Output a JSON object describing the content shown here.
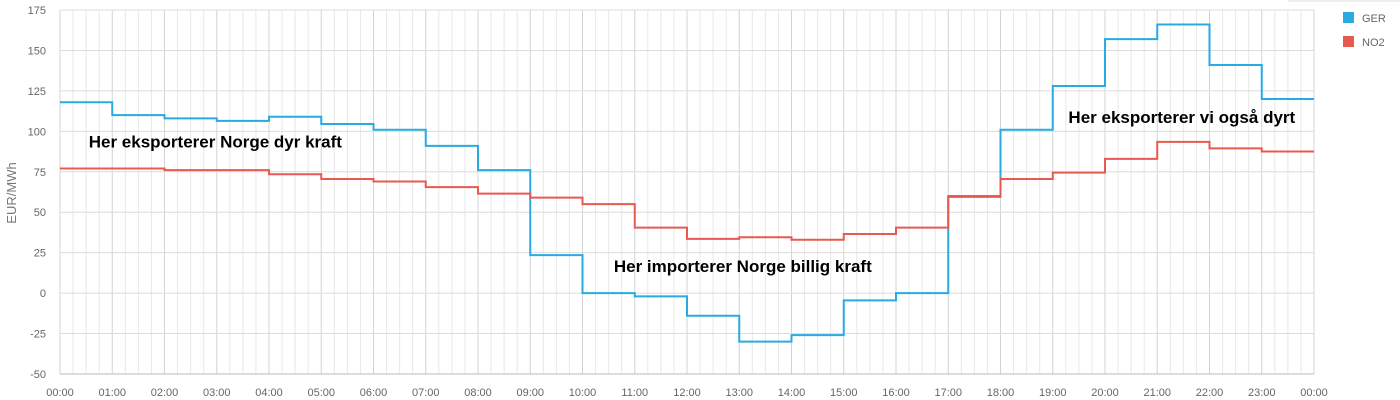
{
  "chart_data": {
    "type": "line",
    "step": true,
    "ylabel": "EUR/MWh",
    "ylim": [
      -50,
      175
    ],
    "yticks": [
      -50,
      -25,
      0,
      25,
      50,
      75,
      100,
      125,
      150,
      175
    ],
    "xticks": [
      "00:00",
      "01:00",
      "02:00",
      "03:00",
      "04:00",
      "05:00",
      "06:00",
      "07:00",
      "08:00",
      "09:00",
      "10:00",
      "11:00",
      "12:00",
      "13:00",
      "14:00",
      "15:00",
      "16:00",
      "17:00",
      "18:00",
      "19:00",
      "20:00",
      "21:00",
      "22:00",
      "23:00",
      "00:00"
    ],
    "grid": true,
    "legend": "top-right",
    "series": [
      {
        "name": "GER",
        "color": "#29aae1",
        "values": [
          118,
          110,
          108,
          106.5,
          109,
          104.5,
          101,
          91,
          76,
          23.5,
          0,
          -2,
          -14,
          -30,
          -26,
          -4.5,
          0,
          60,
          101,
          128,
          157,
          166,
          141,
          120
        ]
      },
      {
        "name": "NO2",
        "color": "#e85a4f",
        "values": [
          77,
          77,
          76,
          76,
          73.5,
          70.5,
          69,
          65.5,
          61.5,
          59,
          55,
          40.5,
          33.5,
          34.5,
          33,
          36.5,
          40.5,
          59.5,
          70.5,
          74.5,
          83,
          93.5,
          89.5,
          87.5
        ]
      }
    ],
    "annotations": [
      {
        "text": "Her eksporterer Norge dyr kraft",
        "x_hour": 0.55,
        "y": 90
      },
      {
        "text": "Her importerer Norge billig kraft",
        "x_hour": 10.6,
        "y": 13
      },
      {
        "text": "Her eksporterer vi også dyrt",
        "x_hour": 19.3,
        "y": 105
      }
    ]
  }
}
